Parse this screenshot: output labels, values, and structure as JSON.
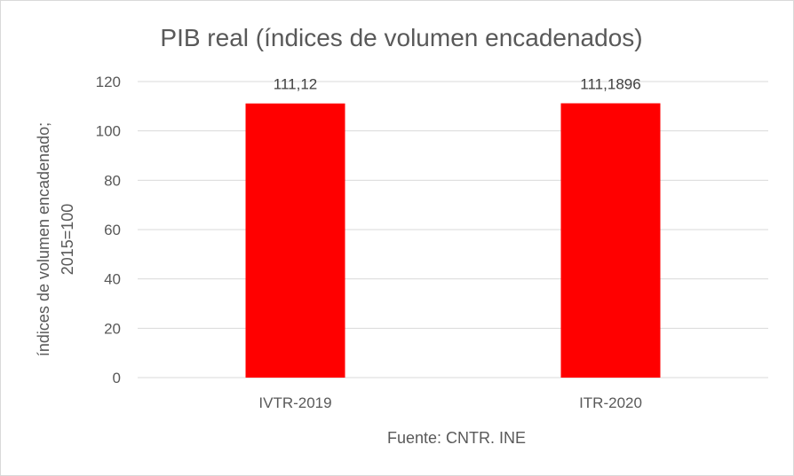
{
  "chart_data": {
    "type": "bar",
    "title": "PIB real (índices de volumen encadenados)",
    "categories": [
      "IVTR-2019",
      "ITR-2020"
    ],
    "values": [
      111.12,
      111.1896
    ],
    "data_labels": [
      "111,12",
      "111,1896"
    ],
    "ylabel_line1": "índices de volumen encadenado;",
    "ylabel_line2": "2015=100",
    "xlabel": "Fuente: CNTR. INE",
    "ylim": [
      0,
      120
    ],
    "yticks": [
      0,
      20,
      40,
      60,
      80,
      100,
      120
    ],
    "grid": true,
    "bar_color": "#ff0000"
  }
}
